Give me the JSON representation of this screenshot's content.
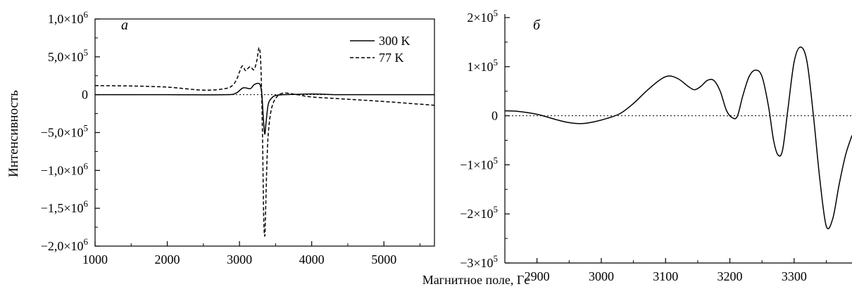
{
  "figure": {
    "shared_xlabel": "Магнитное поле, Гс",
    "shared_ylabel": "Интенсивность"
  },
  "chart_data": [
    {
      "type": "line",
      "panel_label": "а",
      "xlabel": "Магнитное поле, Гс",
      "ylabel": "Интенсивность",
      "xlim": [
        1000,
        5700
      ],
      "ylim": [
        -2000000,
        1000000
      ],
      "x_ticks": [
        {
          "value": 1000,
          "label": "1000"
        },
        {
          "value": 2000,
          "label": "2000"
        },
        {
          "value": 3000,
          "label": "3000"
        },
        {
          "value": 4000,
          "label": "4000"
        },
        {
          "value": 5000,
          "label": "5000"
        }
      ],
      "y_ticks": [
        {
          "value": 1000000,
          "mantissa": "1,0×10",
          "exp": "6"
        },
        {
          "value": 500000,
          "mantissa": "5,0×10",
          "exp": "5"
        },
        {
          "value": 0,
          "mantissa": "0",
          "exp": ""
        },
        {
          "value": -500000,
          "mantissa": "−5,0×10",
          "exp": "5"
        },
        {
          "value": -1000000,
          "mantissa": "−1,0×10",
          "exp": "6"
        },
        {
          "value": -1500000,
          "mantissa": "−1,5×10",
          "exp": "6"
        },
        {
          "value": -2000000,
          "mantissa": "−2,0×10",
          "exp": "6"
        }
      ],
      "zero_line": true,
      "legend_position": "top-right",
      "series": [
        {
          "name": "300 K",
          "style": "solid",
          "x": [
            1000,
            2000,
            2800,
            2950,
            3050,
            3150,
            3200,
            3260,
            3290,
            3310,
            3330,
            3350,
            3370,
            3400,
            3450,
            3500,
            3600,
            3800,
            4000,
            4200,
            4400,
            5000,
            5700
          ],
          "y": [
            0,
            0,
            0,
            20000,
            90000,
            80000,
            130000,
            150000,
            120000,
            0,
            -300000,
            -520000,
            -350000,
            -120000,
            -40000,
            -10000,
            0,
            5000,
            10000,
            5000,
            0,
            0,
            0
          ]
        },
        {
          "name": "77 K",
          "style": "dashed",
          "x": [
            1000,
            1500,
            2000,
            2500,
            2800,
            2900,
            2960,
            3000,
            3040,
            3080,
            3100,
            3150,
            3200,
            3240,
            3270,
            3290,
            3305,
            3320,
            3335,
            3350,
            3360,
            3380,
            3400,
            3440,
            3500,
            3600,
            3800,
            4000,
            4500,
            5000,
            5700
          ],
          "y": [
            120000,
            115000,
            100000,
            60000,
            80000,
            120000,
            200000,
            300000,
            380000,
            320000,
            330000,
            370000,
            330000,
            450000,
            620000,
            500000,
            100000,
            -600000,
            -1600000,
            -1870000,
            -1600000,
            -900000,
            -500000,
            -200000,
            -50000,
            20000,
            0,
            -30000,
            -60000,
            -90000,
            -140000
          ]
        }
      ]
    },
    {
      "type": "line",
      "panel_label": "б",
      "xlabel": "Магнитное поле, Гс",
      "ylabel": "",
      "xlim": [
        2850,
        3390
      ],
      "ylim": [
        -300000,
        200000
      ],
      "x_ticks": [
        {
          "value": 2900,
          "label": "2900"
        },
        {
          "value": 3000,
          "label": "3000"
        },
        {
          "value": 3100,
          "label": "3100"
        },
        {
          "value": 3200,
          "label": "3200"
        },
        {
          "value": 3300,
          "label": "3300"
        }
      ],
      "y_ticks": [
        {
          "value": 200000,
          "mantissa": "2×10",
          "exp": "5"
        },
        {
          "value": 100000,
          "mantissa": "1×10",
          "exp": "5"
        },
        {
          "value": 0,
          "mantissa": "0",
          "exp": ""
        },
        {
          "value": -100000,
          "mantissa": "−1×10",
          "exp": "5"
        },
        {
          "value": -200000,
          "mantissa": "−2×10",
          "exp": "5"
        },
        {
          "value": -300000,
          "mantissa": "−3×10",
          "exp": "5"
        }
      ],
      "zero_line": true,
      "series": [
        {
          "style": "solid",
          "x": [
            2850,
            2870,
            2900,
            2930,
            2950,
            2970,
            2990,
            3010,
            3030,
            3050,
            3070,
            3090,
            3105,
            3120,
            3135,
            3145,
            3155,
            3165,
            3175,
            3185,
            3195,
            3205,
            3212,
            3220,
            3230,
            3240,
            3250,
            3260,
            3268,
            3275,
            3282,
            3290,
            3300,
            3310,
            3320,
            3330,
            3340,
            3350,
            3360,
            3370,
            3380,
            3390
          ],
          "y": [
            10000,
            9000,
            3000,
            -8000,
            -14000,
            -16000,
            -12000,
            -5000,
            5000,
            25000,
            50000,
            72000,
            81000,
            75000,
            60000,
            53000,
            60000,
            72000,
            72000,
            50000,
            10000,
            -5000,
            0,
            40000,
            80000,
            93000,
            80000,
            20000,
            -50000,
            -80000,
            -70000,
            10000,
            110000,
            140000,
            110000,
            0,
            -130000,
            -225000,
            -210000,
            -140000,
            -80000,
            -40000
          ]
        }
      ]
    }
  ]
}
